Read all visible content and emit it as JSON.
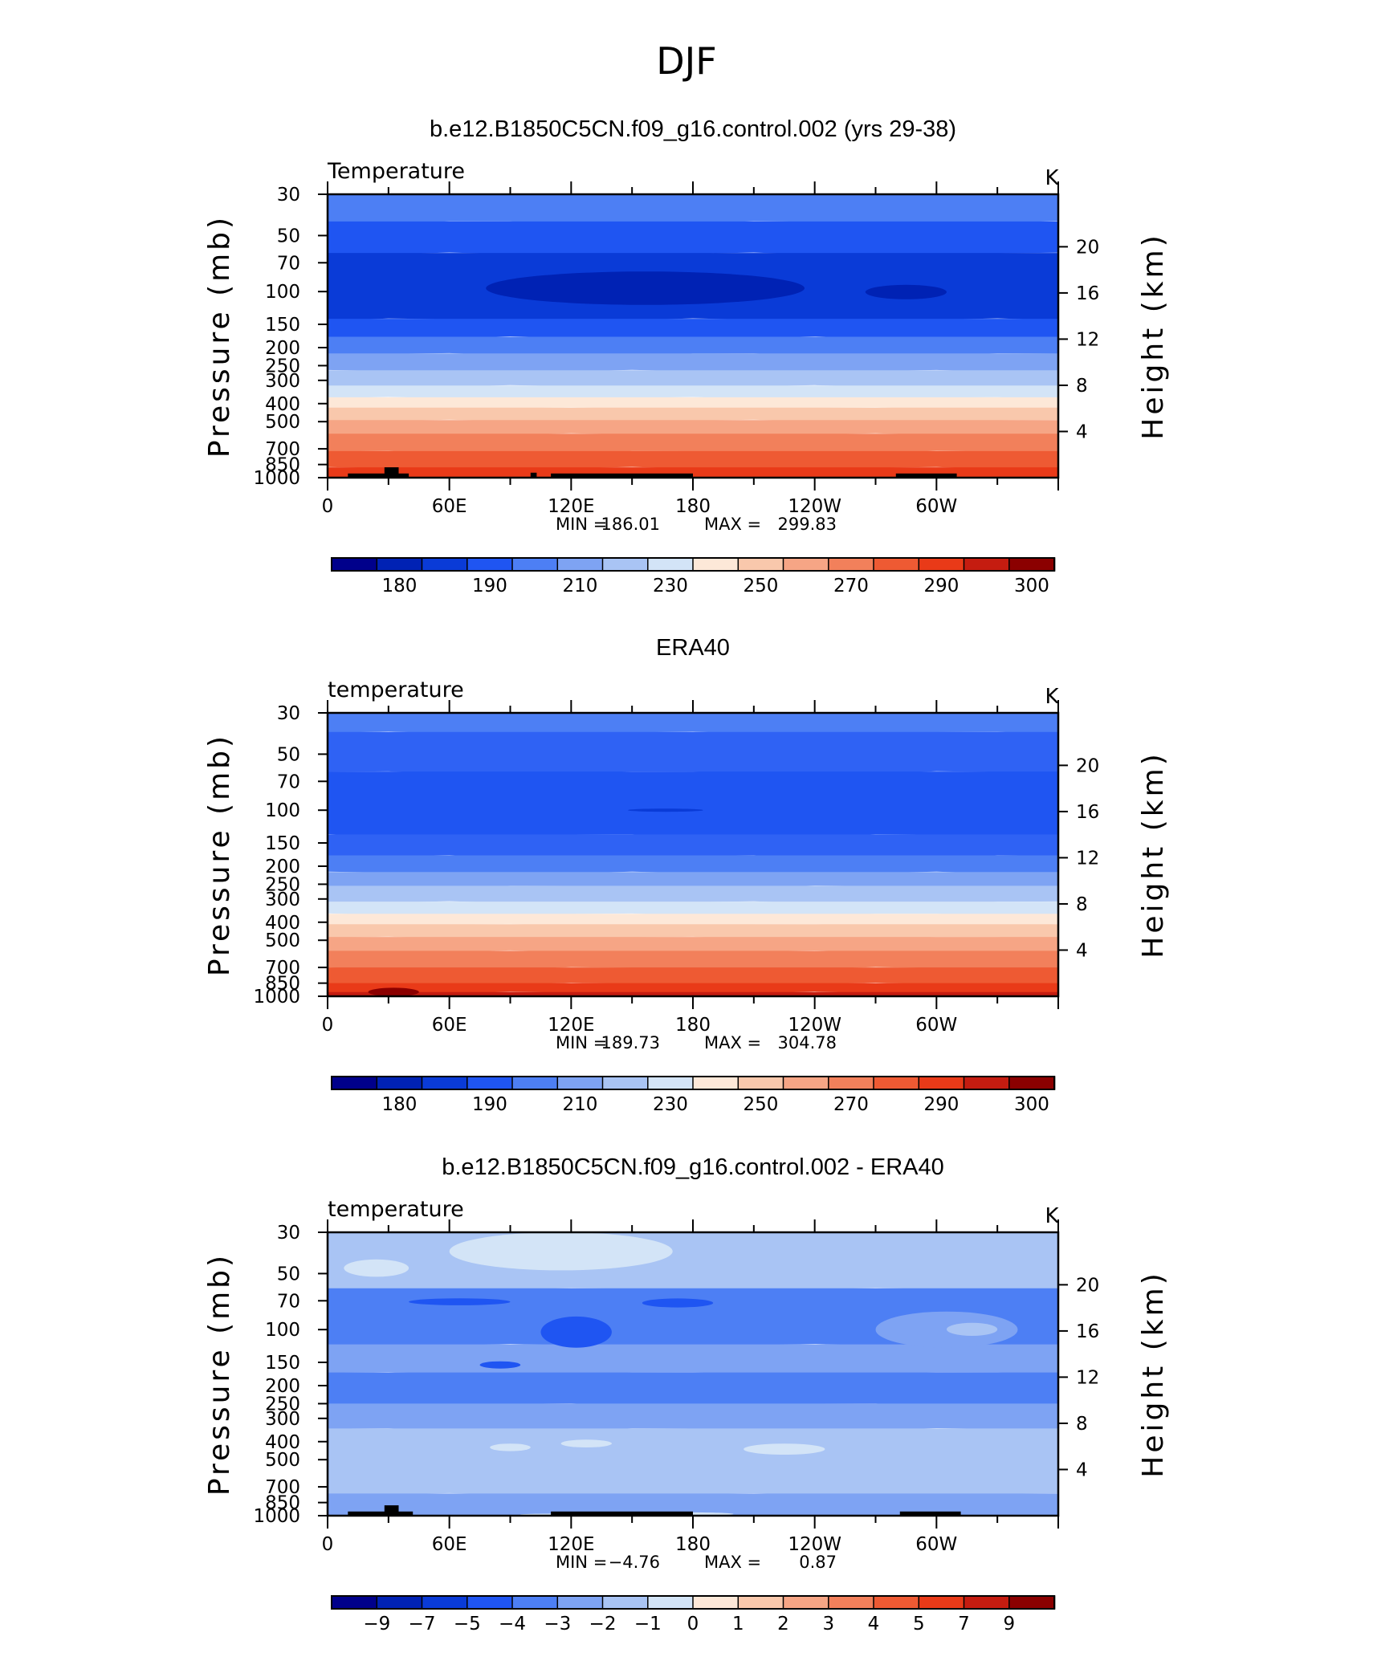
{
  "figure": {
    "title": "DJF"
  },
  "chart_data": [
    {
      "type": "heatmap",
      "title": "b.e12.B1850C5CN.f09_g16.control.002 (yrs 29-38)",
      "subtitle_left": "Temperature",
      "units": "K",
      "ylabel": "Pressure (mb)",
      "ylabel_right": "Height (km)",
      "x_ticks": [
        "0",
        "60E",
        "120E",
        "180",
        "120W",
        "60W"
      ],
      "y_ticks": [
        "30",
        "50",
        "70",
        "100",
        "150",
        "200",
        "250",
        "300",
        "400",
        "500",
        "700",
        "850",
        "1000"
      ],
      "y_ticks_right": [
        "20",
        "16",
        "12",
        "8",
        "4"
      ],
      "stats": {
        "min_label": "MIN =",
        "min": "186.01",
        "max_label": "MAX =",
        "max": "299.83"
      },
      "colorbar": {
        "colors": [
          "#00008b",
          "#0022b4",
          "#0a3bd7",
          "#1f55f2",
          "#4d7ff4",
          "#7ea3f3",
          "#a9c4f4",
          "#d3e4f7",
          "#fde8d8",
          "#f9c8ac",
          "#f6a585",
          "#f2805b",
          "#ee5a33",
          "#e93a18",
          "#c51c10",
          "#8b0000"
        ],
        "labels": [
          "180",
          "190",
          "210",
          "230",
          "250",
          "270",
          "290",
          "300"
        ]
      },
      "field": {
        "bands": [
          {
            "p_top": 30,
            "p_bot": 42,
            "color": "#4d7ff4"
          },
          {
            "p_top": 42,
            "p_bot": 62,
            "color": "#1f55f2"
          },
          {
            "p_top": 62,
            "p_bot": 140,
            "color": "#0a3bd7"
          },
          {
            "p_top": 140,
            "p_bot": 175,
            "color": "#1f55f2"
          },
          {
            "p_top": 175,
            "p_bot": 215,
            "color": "#4d7ff4"
          },
          {
            "p_top": 215,
            "p_bot": 265,
            "color": "#7ea3f3"
          },
          {
            "p_top": 265,
            "p_bot": 320,
            "color": "#a9c4f4"
          },
          {
            "p_top": 320,
            "p_bot": 370,
            "color": "#d3e4f7"
          },
          {
            "p_top": 370,
            "p_bot": 420,
            "color": "#fde8d8"
          },
          {
            "p_top": 420,
            "p_bot": 490,
            "color": "#f9c8ac"
          },
          {
            "p_top": 490,
            "p_bot": 580,
            "color": "#f6a585"
          },
          {
            "p_top": 580,
            "p_bot": 720,
            "color": "#f2805b"
          },
          {
            "p_top": 720,
            "p_bot": 880,
            "color": "#ee5a33"
          },
          {
            "p_top": 880,
            "p_bot": 1000,
            "color": "#e93a18"
          }
        ],
        "blobs": [
          {
            "lon_start": 78,
            "lon_end": 235,
            "p_top": 78,
            "p_bot": 118,
            "color": "#0022b4"
          },
          {
            "lon_start": 265,
            "lon_end": 305,
            "p_top": 92,
            "p_bot": 110,
            "color": "#0022b4"
          }
        ],
        "topography": [
          {
            "lon_start": 10,
            "lon_end": 40,
            "p_top": 950
          },
          {
            "lon_start": 28,
            "lon_end": 35,
            "p_top": 880
          },
          {
            "lon_start": 100,
            "lon_end": 103,
            "p_top": 940
          },
          {
            "lon_start": 110,
            "lon_end": 180,
            "p_top": 950
          },
          {
            "lon_start": 280,
            "lon_end": 310,
            "p_top": 950
          }
        ]
      }
    },
    {
      "type": "heatmap",
      "title": "ERA40",
      "subtitle_left": "temperature",
      "units": "K",
      "ylabel": "Pressure (mb)",
      "ylabel_right": "Height (km)",
      "x_ticks": [
        "0",
        "60E",
        "120E",
        "180",
        "120W",
        "60W"
      ],
      "y_ticks": [
        "30",
        "50",
        "70",
        "100",
        "150",
        "200",
        "250",
        "300",
        "400",
        "500",
        "700",
        "850",
        "1000"
      ],
      "y_ticks_right": [
        "20",
        "16",
        "12",
        "8",
        "4"
      ],
      "stats": {
        "min_label": "MIN =",
        "min": "189.73",
        "max_label": "MAX =",
        "max": "304.78"
      },
      "colorbar": {
        "colors": [
          "#00008b",
          "#0022b4",
          "#0a3bd7",
          "#1f55f2",
          "#4d7ff4",
          "#7ea3f3",
          "#a9c4f4",
          "#d3e4f7",
          "#fde8d8",
          "#f9c8ac",
          "#f6a585",
          "#f2805b",
          "#ee5a33",
          "#e93a18",
          "#c51c10",
          "#8b0000"
        ],
        "labels": [
          "180",
          "190",
          "210",
          "230",
          "250",
          "270",
          "290",
          "300"
        ]
      },
      "field": {
        "bands": [
          {
            "p_top": 30,
            "p_bot": 38,
            "color": "#4d7ff4"
          },
          {
            "p_top": 38,
            "p_bot": 62,
            "color": "#2f62f4"
          },
          {
            "p_top": 62,
            "p_bot": 135,
            "color": "#1f55f2"
          },
          {
            "p_top": 135,
            "p_bot": 175,
            "color": "#2f62f4"
          },
          {
            "p_top": 175,
            "p_bot": 215,
            "color": "#4d7ff4"
          },
          {
            "p_top": 215,
            "p_bot": 255,
            "color": "#7ea3f3"
          },
          {
            "p_top": 255,
            "p_bot": 310,
            "color": "#a9c4f4"
          },
          {
            "p_top": 310,
            "p_bot": 360,
            "color": "#d3e4f7"
          },
          {
            "p_top": 360,
            "p_bot": 410,
            "color": "#fde8d8"
          },
          {
            "p_top": 410,
            "p_bot": 480,
            "color": "#f9c8ac"
          },
          {
            "p_top": 480,
            "p_bot": 570,
            "color": "#f6a585"
          },
          {
            "p_top": 570,
            "p_bot": 700,
            "color": "#f2805b"
          },
          {
            "p_top": 700,
            "p_bot": 850,
            "color": "#ee5a33"
          },
          {
            "p_top": 850,
            "p_bot": 950,
            "color": "#e93a18"
          },
          {
            "p_top": 950,
            "p_bot": 1000,
            "color": "#c51c10"
          }
        ],
        "blobs": [
          {
            "lon_start": 148,
            "lon_end": 185,
            "p_top": 98,
            "p_bot": 102,
            "color": "#0a3bd7"
          },
          {
            "lon_start": 20,
            "lon_end": 45,
            "p_top": 900,
            "p_bot": 1000,
            "color": "#8b0000"
          }
        ],
        "topography": []
      }
    },
    {
      "type": "heatmap",
      "title": "b.e12.B1850C5CN.f09_g16.control.002 - ERA40",
      "subtitle_left": "temperature",
      "units": "K",
      "ylabel": "Pressure (mb)",
      "ylabel_right": "Height (km)",
      "x_ticks": [
        "0",
        "60E",
        "120E",
        "180",
        "120W",
        "60W"
      ],
      "y_ticks": [
        "30",
        "50",
        "70",
        "100",
        "150",
        "200",
        "250",
        "300",
        "400",
        "500",
        "700",
        "850",
        "1000"
      ],
      "y_ticks_right": [
        "20",
        "16",
        "12",
        "8",
        "4"
      ],
      "stats": {
        "min_label": "MIN =",
        "min": "−4.76",
        "max_label": "MAX =",
        "max": "0.87"
      },
      "colorbar": {
        "colors": [
          "#00008b",
          "#0022b4",
          "#0a3bd7",
          "#1f55f2",
          "#4d7ff4",
          "#7ea3f3",
          "#a9c4f4",
          "#d3e4f7",
          "#fde8d8",
          "#f9c8ac",
          "#f6a585",
          "#f2805b",
          "#ee5a33",
          "#e93a18",
          "#c51c10",
          "#8b0000"
        ],
        "labels": [
          "−9",
          "−7",
          "−5",
          "−4",
          "−3",
          "−2",
          "−1",
          "0",
          "1",
          "2",
          "3",
          "4",
          "5",
          "7",
          "9"
        ]
      },
      "field": {
        "bands": [
          {
            "p_top": 30,
            "p_bot": 60,
            "color": "#a9c4f4"
          },
          {
            "p_top": 60,
            "p_bot": 120,
            "color": "#4d7ff4"
          },
          {
            "p_top": 120,
            "p_bot": 170,
            "color": "#7ea3f3"
          },
          {
            "p_top": 170,
            "p_bot": 250,
            "color": "#4d7ff4"
          },
          {
            "p_top": 250,
            "p_bot": 340,
            "color": "#7ea3f3"
          },
          {
            "p_top": 340,
            "p_bot": 760,
            "color": "#a9c4f4"
          },
          {
            "p_top": 760,
            "p_bot": 1000,
            "color": "#7ea3f3"
          }
        ],
        "blobs": [
          {
            "lon_start": 60,
            "lon_end": 170,
            "p_top": 30,
            "p_bot": 48,
            "color": "#d3e4f7"
          },
          {
            "lon_start": 8,
            "lon_end": 40,
            "p_top": 42,
            "p_bot": 52,
            "color": "#d3e4f7"
          },
          {
            "lon_start": 105,
            "lon_end": 140,
            "p_top": 85,
            "p_bot": 125,
            "color": "#1f55f2"
          },
          {
            "lon_start": 40,
            "lon_end": 90,
            "p_top": 68,
            "p_bot": 74,
            "color": "#1f55f2"
          },
          {
            "lon_start": 155,
            "lon_end": 190,
            "p_top": 68,
            "p_bot": 76,
            "color": "#1f55f2"
          },
          {
            "lon_start": 270,
            "lon_end": 340,
            "p_top": 80,
            "p_bot": 125,
            "color": "#7ea3f3"
          },
          {
            "lon_start": 305,
            "lon_end": 330,
            "p_top": 92,
            "p_bot": 108,
            "color": "#a9c4f4"
          },
          {
            "lon_start": 75,
            "lon_end": 95,
            "p_top": 148,
            "p_bot": 162,
            "color": "#1f55f2"
          },
          {
            "lon_start": 205,
            "lon_end": 245,
            "p_top": 410,
            "p_bot": 470,
            "color": "#d3e4f7"
          },
          {
            "lon_start": 80,
            "lon_end": 100,
            "p_top": 410,
            "p_bot": 450,
            "color": "#d3e4f7"
          },
          {
            "lon_start": 115,
            "lon_end": 140,
            "p_top": 390,
            "p_bot": 430,
            "color": "#d3e4f7"
          },
          {
            "lon_start": 150,
            "lon_end": 200,
            "p_top": 960,
            "p_bot": 1000,
            "color": "#d3e4f7"
          },
          {
            "lon_start": 95,
            "lon_end": 145,
            "p_top": 975,
            "p_bot": 1000,
            "color": "#d3e4f7"
          }
        ],
        "topography": [
          {
            "lon_start": 10,
            "lon_end": 42,
            "p_top": 950
          },
          {
            "lon_start": 28,
            "lon_end": 35,
            "p_top": 880
          },
          {
            "lon_start": 110,
            "lon_end": 180,
            "p_top": 950
          },
          {
            "lon_start": 282,
            "lon_end": 312,
            "p_top": 950
          }
        ]
      }
    }
  ]
}
